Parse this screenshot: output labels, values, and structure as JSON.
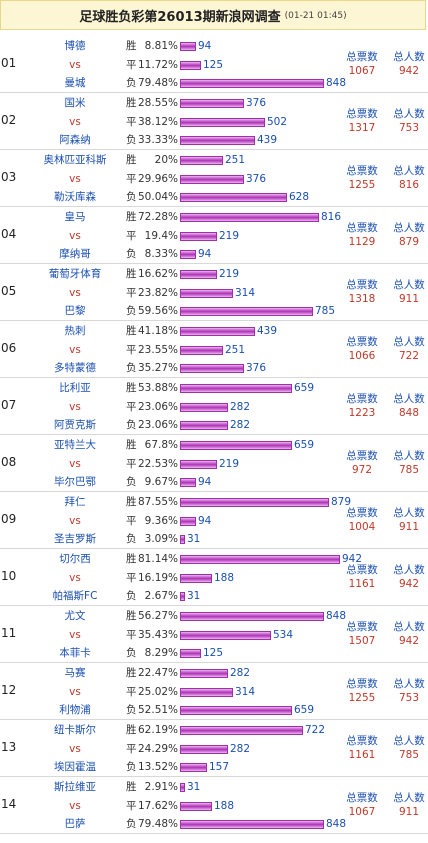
{
  "header": {
    "title": "足球胜负彩第26013期新浪网调查",
    "time": "(01-21 01:45)"
  },
  "labels": {
    "win": "胜",
    "draw": "平",
    "lose": "负",
    "vs": "vs",
    "total_votes": "总票数",
    "total_people": "总人数"
  },
  "bar_max": 942,
  "matches": [
    {
      "num": "01",
      "home": "博德",
      "away": "曼城",
      "results": [
        {
          "pct": "8.81%",
          "count": 94
        },
        {
          "pct": "11.72%",
          "count": 125
        },
        {
          "pct": "79.48%",
          "count": 848
        }
      ],
      "total_votes": "1067",
      "total_people": "942"
    },
    {
      "num": "02",
      "home": "国米",
      "away": "阿森纳",
      "results": [
        {
          "pct": "28.55%",
          "count": 376
        },
        {
          "pct": "38.12%",
          "count": 502
        },
        {
          "pct": "33.33%",
          "count": 439
        }
      ],
      "total_votes": "1317",
      "total_people": "753"
    },
    {
      "num": "03",
      "home": "奥林匹亚科斯",
      "away": "勒沃库森",
      "results": [
        {
          "pct": "20%",
          "count": 251
        },
        {
          "pct": "29.96%",
          "count": 376
        },
        {
          "pct": "50.04%",
          "count": 628
        }
      ],
      "total_votes": "1255",
      "total_people": "816"
    },
    {
      "num": "04",
      "home": "皇马",
      "away": "摩纳哥",
      "results": [
        {
          "pct": "72.28%",
          "count": 816
        },
        {
          "pct": "19.4%",
          "count": 219
        },
        {
          "pct": "8.33%",
          "count": 94
        }
      ],
      "total_votes": "1129",
      "total_people": "879"
    },
    {
      "num": "05",
      "home": "葡萄牙体育",
      "away": "巴黎",
      "results": [
        {
          "pct": "16.62%",
          "count": 219
        },
        {
          "pct": "23.82%",
          "count": 314
        },
        {
          "pct": "59.56%",
          "count": 785
        }
      ],
      "total_votes": "1318",
      "total_people": "911"
    },
    {
      "num": "06",
      "home": "热刺",
      "away": "多特蒙德",
      "results": [
        {
          "pct": "41.18%",
          "count": 439
        },
        {
          "pct": "23.55%",
          "count": 251
        },
        {
          "pct": "35.27%",
          "count": 376
        }
      ],
      "total_votes": "1066",
      "total_people": "722"
    },
    {
      "num": "07",
      "home": "比利亚",
      "away": "阿贾克斯",
      "results": [
        {
          "pct": "53.88%",
          "count": 659
        },
        {
          "pct": "23.06%",
          "count": 282
        },
        {
          "pct": "23.06%",
          "count": 282
        }
      ],
      "total_votes": "1223",
      "total_people": "848"
    },
    {
      "num": "08",
      "home": "亚特兰大",
      "away": "毕尔巴鄂",
      "results": [
        {
          "pct": "67.8%",
          "count": 659
        },
        {
          "pct": "22.53%",
          "count": 219
        },
        {
          "pct": "9.67%",
          "count": 94
        }
      ],
      "total_votes": "972",
      "total_people": "785"
    },
    {
      "num": "09",
      "home": "拜仁",
      "away": "圣吉罗斯",
      "results": [
        {
          "pct": "87.55%",
          "count": 879
        },
        {
          "pct": "9.36%",
          "count": 94
        },
        {
          "pct": "3.09%",
          "count": 31
        }
      ],
      "total_votes": "1004",
      "total_people": "911"
    },
    {
      "num": "10",
      "home": "切尔西",
      "away": "帕福斯FC",
      "results": [
        {
          "pct": "81.14%",
          "count": 942
        },
        {
          "pct": "16.19%",
          "count": 188
        },
        {
          "pct": "2.67%",
          "count": 31
        }
      ],
      "total_votes": "1161",
      "total_people": "942"
    },
    {
      "num": "11",
      "home": "尤文",
      "away": "本菲卡",
      "results": [
        {
          "pct": "56.27%",
          "count": 848
        },
        {
          "pct": "35.43%",
          "count": 534
        },
        {
          "pct": "8.29%",
          "count": 125
        }
      ],
      "total_votes": "1507",
      "total_people": "942"
    },
    {
      "num": "12",
      "home": "马赛",
      "away": "利物浦",
      "results": [
        {
          "pct": "22.47%",
          "count": 282
        },
        {
          "pct": "25.02%",
          "count": 314
        },
        {
          "pct": "52.51%",
          "count": 659
        }
      ],
      "total_votes": "1255",
      "total_people": "753"
    },
    {
      "num": "13",
      "home": "纽卡斯尔",
      "away": "埃因霍温",
      "results": [
        {
          "pct": "62.19%",
          "count": 722
        },
        {
          "pct": "24.29%",
          "count": 282
        },
        {
          "pct": "13.52%",
          "count": 157
        }
      ],
      "total_votes": "1161",
      "total_people": "785"
    },
    {
      "num": "14",
      "home": "斯拉维亚",
      "away": "巴萨",
      "results": [
        {
          "pct": "2.91%",
          "count": 31
        },
        {
          "pct": "17.62%",
          "count": 188
        },
        {
          "pct": "79.48%",
          "count": 848
        }
      ],
      "total_votes": "1067",
      "total_people": "911"
    }
  ]
}
